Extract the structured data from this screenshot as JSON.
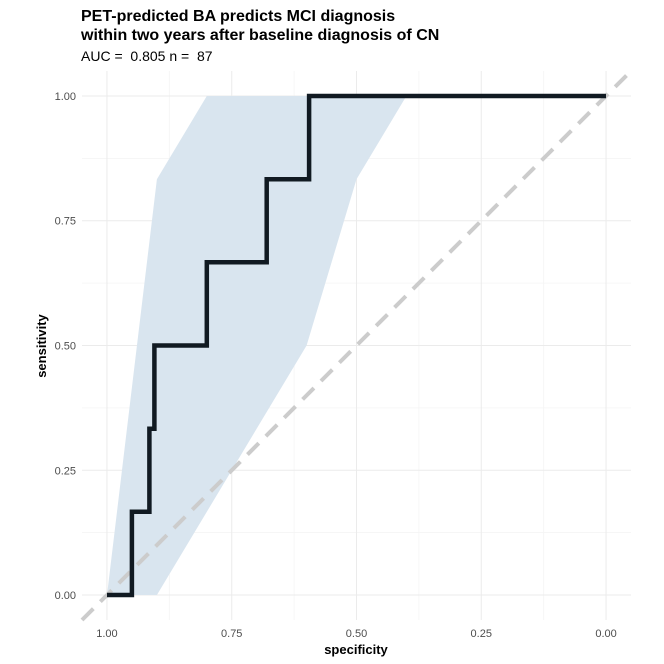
{
  "chart_data": {
    "type": "line",
    "title_lines": [
      "PET-predicted BA predicts MCI diagnosis",
      "within two years after baseline diagnosis of CN"
    ],
    "subtitle": "AUC =  0.805 n =  87",
    "xlabel": "specificity",
    "ylabel": "sensitivity",
    "x_reversed": true,
    "xlim": [
      1.05,
      -0.05
    ],
    "ylim": [
      -0.05,
      1.05
    ],
    "x_ticks": [
      1.0,
      0.75,
      0.5,
      0.25,
      0.0
    ],
    "x_tick_labels": [
      "1.00",
      "0.75",
      "0.50",
      "0.25",
      "0.00"
    ],
    "y_ticks": [
      0.0,
      0.25,
      0.5,
      0.75,
      1.0
    ],
    "y_tick_labels": [
      "0.00",
      "0.25",
      "0.50",
      "0.75",
      "1.00"
    ],
    "grid": true,
    "roc_curve": {
      "color": "#111a22",
      "points": [
        {
          "specificity": 1.0,
          "sensitivity": 0.0
        },
        {
          "specificity": 0.95,
          "sensitivity": 0.0
        },
        {
          "specificity": 0.95,
          "sensitivity": 0.167
        },
        {
          "specificity": 0.915,
          "sensitivity": 0.167
        },
        {
          "specificity": 0.915,
          "sensitivity": 0.333
        },
        {
          "specificity": 0.905,
          "sensitivity": 0.333
        },
        {
          "specificity": 0.905,
          "sensitivity": 0.5
        },
        {
          "specificity": 0.8,
          "sensitivity": 0.5
        },
        {
          "specificity": 0.8,
          "sensitivity": 0.667
        },
        {
          "specificity": 0.68,
          "sensitivity": 0.667
        },
        {
          "specificity": 0.68,
          "sensitivity": 0.833
        },
        {
          "specificity": 0.595,
          "sensitivity": 0.833
        },
        {
          "specificity": 0.595,
          "sensitivity": 1.0
        },
        {
          "specificity": 0.0,
          "sensitivity": 1.0
        }
      ]
    },
    "confidence_band": {
      "color": "#d9e5ef",
      "upper": [
        {
          "specificity": 1.0,
          "sensitivity": 0.0
        },
        {
          "specificity": 0.9,
          "sensitivity": 0.833
        },
        {
          "specificity": 0.8,
          "sensitivity": 1.0
        },
        {
          "specificity": 0.4,
          "sensitivity": 1.0
        }
      ],
      "lower": [
        {
          "specificity": 0.4,
          "sensitivity": 1.0
        },
        {
          "specificity": 0.5,
          "sensitivity": 0.833
        },
        {
          "specificity": 0.6,
          "sensitivity": 0.5
        },
        {
          "specificity": 0.9,
          "sensitivity": 0.0
        },
        {
          "specificity": 1.0,
          "sensitivity": 0.0
        }
      ]
    },
    "reference_line": {
      "color": "#cccccc",
      "dashed": true,
      "from": {
        "specificity": 1.05,
        "sensitivity": -0.05
      },
      "to": {
        "specificity": -0.05,
        "sensitivity": 1.05
      }
    }
  }
}
